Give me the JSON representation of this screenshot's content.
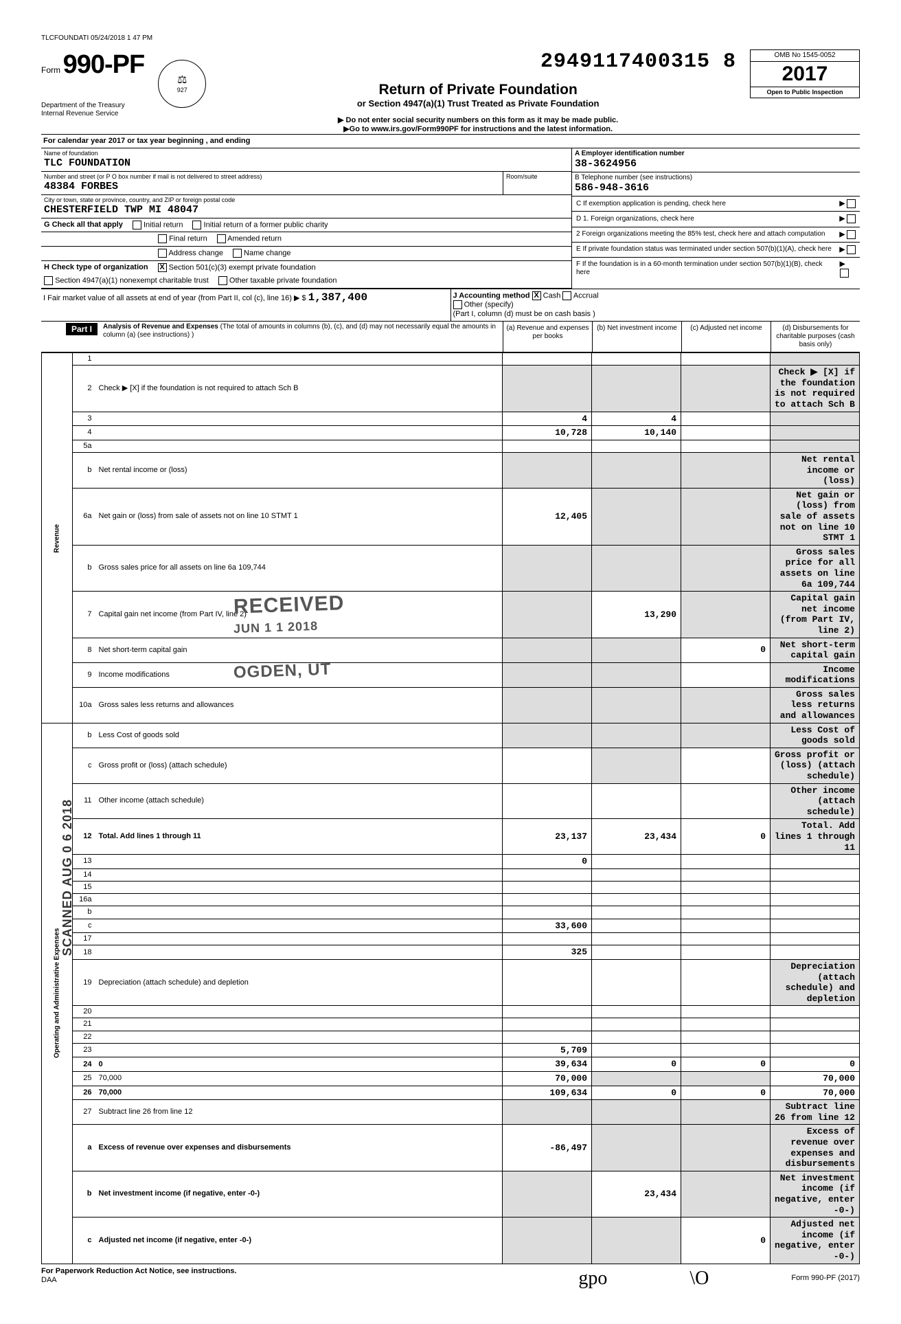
{
  "header_stamp": "TLCFOUNDATI 05/24/2018 1 47 PM",
  "tracking": "2949117400315 8",
  "form": {
    "prefix": "Form",
    "number": "990-PF",
    "title": "Return of Private Foundation",
    "subtitle": "or Section 4947(a)(1) Trust Treated as Private Foundation",
    "note1": "▶ Do not enter social security numbers on this form as it may be made public.",
    "note2": "▶Go to www.irs.gov/Form990PF for instructions and the latest information.",
    "dept1": "Department of the Treasury",
    "dept2": "Internal Revenue Service"
  },
  "yearbox": {
    "omb": "OMB No 1545-0052",
    "year": "2017",
    "inspection": "Open to Public Inspection"
  },
  "cal_year": "For calendar year 2017 or tax year beginning                              , and ending",
  "foundation": {
    "name_label": "Name of foundation",
    "name": "TLC FOUNDATION",
    "addr_label": "Number and street (or P O  box number if mail is not delivered to street address)",
    "addr": "48384 FORBES",
    "room_label": "Room/suite",
    "city_label": "City or town, state or province, country, and ZIP or foreign postal code",
    "city": "CHESTERFIELD TWP      MI  48047"
  },
  "side": {
    "a_label": "A    Employer identification number",
    "a_value": "38-3624956",
    "b_label": "B    Telephone number (see instructions)",
    "b_value": "586-948-3616",
    "c_label": "C    If exemption application is pending, check here",
    "d1_label": "D    1.  Foreign organizations, check here",
    "d2_label": "2  Foreign organizations meeting the 85% test, check here and attach computation",
    "e_label": "E    If private foundation status was terminated under section 507(b)(1)(A), check here",
    "f_label": "F    If the foundation is in a 60-month termination under section 507(b)(1)(B), check here"
  },
  "g": {
    "label": "G   Check all that apply",
    "initial": "Initial return",
    "initial_former": "Initial return of a former public charity",
    "final": "Final return",
    "amended": "Amended return",
    "addr_change": "Address change",
    "name_change": "Name change"
  },
  "h": {
    "label": "H   Check type of organization",
    "c3": "Section 501(c)(3) exempt private foundation",
    "c3_checked": "X",
    "na": "Section 4947(a)(1) nonexempt charitable trust",
    "other": "Other taxable private foundation"
  },
  "i": {
    "label": "I   Fair market value of all assets at end of year (from Part II, col (c), line 16) ▶  $",
    "value": "1,387,400",
    "j_label": "J   Accounting method",
    "cash": "Cash",
    "cash_checked": "X",
    "accrual": "Accrual",
    "other": "Other (specify)",
    "note": "(Part I, column (d) must be on cash basis )"
  },
  "part1": {
    "label": "Part I",
    "title": "Analysis of Revenue and Expenses",
    "title_note": "(The total of amounts in columns (b), (c), and (d) may not necessarily equal the amounts in column (a) (see instructions) )",
    "col_a": "(a) Revenue and expenses per books",
    "col_b": "(b) Net investment income",
    "col_c": "(c) Adjusted net income",
    "col_d": "(d) Disbursements for charitable purposes (cash basis only)"
  },
  "revenue_label": "Revenue",
  "expenses_label": "Operating and Administrative Expenses",
  "rows": [
    {
      "n": "1",
      "d": "",
      "a": "",
      "b": "",
      "c": "",
      "d_shade": true
    },
    {
      "n": "2",
      "d": "Check ▶  [X]  if the foundation is not required to attach Sch  B",
      "all_shade": true
    },
    {
      "n": "3",
      "d": "",
      "a": "4",
      "b": "4",
      "c": "",
      "d_shade": true
    },
    {
      "n": "4",
      "d": "",
      "a": "10,728",
      "b": "10,140",
      "c": "",
      "d_shade": true
    },
    {
      "n": "5a",
      "d": "",
      "a": "",
      "b": "",
      "c": "",
      "d_shade": true
    },
    {
      "n": "b",
      "d": "Net rental income or (loss)",
      "all_shade": true
    },
    {
      "n": "6a",
      "d": "Net gain or (loss) from sale of assets not on line 10     STMT 1",
      "a": "12,405",
      "bc_shade": true,
      "d_shade": true
    },
    {
      "n": "b",
      "d": "Gross sales price for all assets on line 6a            109,744",
      "all_shade": true
    },
    {
      "n": "7",
      "d": "Capital gain net income (from Part IV, line 2)",
      "a_shade": true,
      "b": "13,290",
      "c_shade": true,
      "d_shade": true
    },
    {
      "n": "8",
      "d": "Net short-term capital gain",
      "a_shade": true,
      "b_shade": true,
      "c": "0",
      "d_shade": true
    },
    {
      "n": "9",
      "d": "Income modifications",
      "a_shade": true,
      "b_shade": true,
      "c": "",
      "d_shade": true
    },
    {
      "n": "10a",
      "d": "Gross sales less returns and allowances",
      "all_shade": true
    },
    {
      "n": "b",
      "d": "Less  Cost of goods sold",
      "all_shade": true
    },
    {
      "n": "c",
      "d": "Gross profit or (loss) (attach schedule)",
      "a": "",
      "b_shade": true,
      "c": "",
      "d_shade": true
    },
    {
      "n": "11",
      "d": "Other income (attach schedule)",
      "a": "",
      "b": "",
      "c": "",
      "d_shade": true
    },
    {
      "n": "12",
      "d": "Total. Add lines 1 through 11",
      "bold": true,
      "a": "23,137",
      "b": "23,434",
      "c": "0",
      "d_shade": true
    },
    {
      "n": "13",
      "d": "",
      "a": "0",
      "b": "",
      "c": ""
    },
    {
      "n": "14",
      "d": "",
      "a": "",
      "b": "",
      "c": ""
    },
    {
      "n": "15",
      "d": "",
      "a": "",
      "b": "",
      "c": ""
    },
    {
      "n": "16a",
      "d": "",
      "a": "",
      "b": "",
      "c": ""
    },
    {
      "n": "b",
      "d": "",
      "a": "",
      "b": "",
      "c": ""
    },
    {
      "n": "c",
      "d": "",
      "a": "33,600",
      "b": "",
      "c": ""
    },
    {
      "n": "17",
      "d": "",
      "a": "",
      "b": "",
      "c": ""
    },
    {
      "n": "18",
      "d": "",
      "a": "325",
      "b": "",
      "c": ""
    },
    {
      "n": "19",
      "d": "Depreciation (attach schedule) and depletion",
      "a": "",
      "b": "",
      "c": "",
      "d_shade": true
    },
    {
      "n": "20",
      "d": "",
      "a": "",
      "b": "",
      "c": ""
    },
    {
      "n": "21",
      "d": "",
      "a": "",
      "b": "",
      "c": ""
    },
    {
      "n": "22",
      "d": "",
      "a": "",
      "b": "",
      "c": ""
    },
    {
      "n": "23",
      "d": "",
      "a": "5,709",
      "b": "",
      "c": ""
    },
    {
      "n": "24",
      "d": "0",
      "bold": true,
      "a": "39,634",
      "b": "0",
      "c": "0"
    },
    {
      "n": "25",
      "d": "70,000",
      "a": "70,000",
      "b_shade": true,
      "c_shade": true
    },
    {
      "n": "26",
      "d": "70,000",
      "bold": true,
      "a": "109,634",
      "b": "0",
      "c": "0"
    },
    {
      "n": "27",
      "d": "Subtract line 26 from line 12",
      "all_shade": true
    },
    {
      "n": "a",
      "d": "Excess of revenue over expenses and disbursements",
      "bold": true,
      "a": "-86,497",
      "b_shade": true,
      "c_shade": true,
      "d_shade": true
    },
    {
      "n": "b",
      "d": "Net investment income (if negative, enter -0-)",
      "bold": true,
      "a_shade": true,
      "b": "23,434",
      "c_shade": true,
      "d_shade": true
    },
    {
      "n": "c",
      "d": "Adjusted net income (if negative, enter -0-)",
      "bold": true,
      "a_shade": true,
      "b_shade": true,
      "c": "0",
      "d_shade": true
    }
  ],
  "stamps": {
    "scanned": "SCANNED  AUG 0 6 2018",
    "received": "RECEIVED",
    "received_date": "JUN 1 1 2018",
    "ogden": "OGDEN, UT"
  },
  "footer": {
    "left": "For Paperwork Reduction Act Notice, see instructions.",
    "daa": "DAA",
    "right": "Form 990-PF (2017)",
    "sig1": "gpo",
    "sig2": "\\O"
  }
}
